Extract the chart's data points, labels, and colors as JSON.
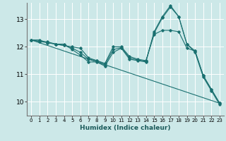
{
  "xlabel": "Humidex (Indice chaleur)",
  "ylabel": "",
  "background_color": "#cce8e8",
  "grid_color": "#ffffff",
  "line_color": "#1a7070",
  "xlim": [
    -0.5,
    23.5
  ],
  "ylim": [
    9.5,
    13.6
  ],
  "yticks": [
    10,
    11,
    12,
    13
  ],
  "xticks": [
    0,
    1,
    2,
    3,
    4,
    5,
    6,
    7,
    8,
    9,
    10,
    11,
    12,
    13,
    14,
    15,
    16,
    17,
    18,
    19,
    20,
    21,
    22,
    23
  ],
  "series": [
    {
      "x": [
        0,
        1,
        2,
        3,
        4,
        5,
        6,
        7,
        8,
        9,
        10,
        11,
        12,
        13,
        14,
        15,
        16,
        17,
        18,
        19,
        20,
        21,
        22,
        23
      ],
      "y": [
        12.25,
        12.25,
        12.15,
        12.1,
        12.1,
        11.9,
        11.7,
        11.45,
        11.45,
        11.3,
        11.8,
        11.95,
        11.55,
        11.5,
        11.45,
        12.55,
        13.1,
        13.5,
        13.1,
        12.1,
        11.85,
        10.95,
        10.45,
        9.95
      ],
      "marker": true
    },
    {
      "x": [
        0,
        1,
        2,
        3,
        4,
        5,
        6,
        7,
        8,
        9,
        10,
        11,
        12,
        13,
        14,
        15,
        16,
        17,
        18,
        19,
        20,
        21,
        22,
        23
      ],
      "y": [
        12.25,
        12.2,
        12.15,
        12.1,
        12.05,
        11.95,
        11.8,
        11.55,
        11.5,
        11.35,
        11.9,
        11.97,
        11.6,
        11.52,
        11.48,
        12.5,
        13.05,
        13.45,
        13.1,
        12.1,
        11.8,
        10.9,
        10.4,
        9.9
      ],
      "marker": true
    },
    {
      "x": [
        0,
        1,
        2,
        3,
        4,
        5,
        6,
        7,
        8,
        9,
        10,
        11,
        12,
        13,
        14,
        15,
        16,
        17,
        18,
        19,
        20,
        21,
        22,
        23
      ],
      "y": [
        12.25,
        12.2,
        12.18,
        12.1,
        12.05,
        12.0,
        11.95,
        11.6,
        11.5,
        11.4,
        12.0,
        12.0,
        11.65,
        11.55,
        11.5,
        12.45,
        12.6,
        12.6,
        12.55,
        11.95,
        11.85,
        10.95,
        10.45,
        9.95
      ],
      "marker": true
    },
    {
      "x": [
        0,
        23
      ],
      "y": [
        12.25,
        9.95
      ],
      "marker": false
    }
  ]
}
